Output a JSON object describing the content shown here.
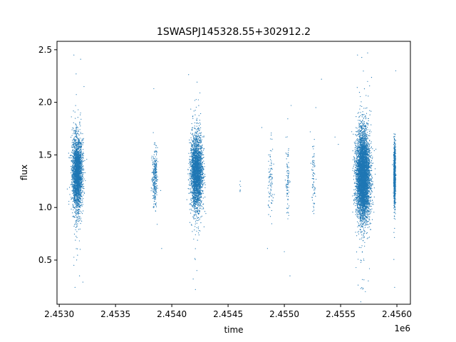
{
  "chart_data": {
    "type": "scatter",
    "title": "1SWASPJ145328.55+302912.2",
    "xlabel": "time",
    "ylabel": "flux",
    "x_offset_label": "1e6",
    "xlim": [
      2.45298,
      2.45612
    ],
    "ylim": [
      0.08,
      2.58
    ],
    "x_ticks": [
      2.453,
      2.4535,
      2.454,
      2.4545,
      2.455,
      2.4555,
      2.456
    ],
    "x_tick_labels": [
      "2.4530",
      "2.4535",
      "2.4540",
      "2.4545",
      "2.4550",
      "2.4555",
      "2.4560"
    ],
    "y_ticks": [
      0.5,
      1.0,
      1.5,
      2.0,
      2.5
    ],
    "y_tick_labels": [
      "0.5",
      "1.0",
      "1.5",
      "2.0",
      "2.5"
    ],
    "grid": false,
    "marker_color": "#1f77b4",
    "marker_size": 0.6,
    "series": [
      {
        "clusters": [
          {
            "x_center": 2.45316,
            "x_spread": 2.2e-05,
            "y_center": 1.32,
            "y_spread": 0.17,
            "count": 2600
          },
          {
            "x_center": 2.45385,
            "x_spread": 1.2e-05,
            "y_center": 1.28,
            "y_spread": 0.13,
            "count": 280
          },
          {
            "x_center": 2.45422,
            "x_spread": 2.6e-05,
            "y_center": 1.33,
            "y_spread": 0.17,
            "count": 2700
          },
          {
            "x_center": 2.45461,
            "x_spread": 3e-06,
            "y_center": 1.2,
            "y_spread": 0.03,
            "count": 6
          },
          {
            "x_center": 2.45488,
            "x_spread": 1.2e-05,
            "y_center": 1.27,
            "y_spread": 0.16,
            "count": 90
          },
          {
            "x_center": 2.45503,
            "x_spread": 8e-06,
            "y_center": 1.25,
            "y_spread": 0.17,
            "count": 90
          },
          {
            "x_center": 2.45526,
            "x_spread": 8e-06,
            "y_center": 1.28,
            "y_spread": 0.16,
            "count": 70
          },
          {
            "x_center": 2.4557,
            "x_spread": 3e-05,
            "y_center": 1.3,
            "y_spread": 0.2,
            "count": 5200
          },
          {
            "x_center": 2.45598,
            "x_spread": 4e-06,
            "y_center": 1.3,
            "y_spread": 0.14,
            "count": 900
          }
        ],
        "outliers": [
          [
            2.45313,
            2.45
          ],
          [
            2.45319,
            2.41
          ],
          [
            2.45315,
            2.27
          ],
          [
            2.45322,
            2.15
          ],
          [
            2.45314,
            0.24
          ],
          [
            2.45321,
            0.29
          ],
          [
            2.45318,
            0.35
          ],
          [
            2.45313,
            0.45
          ],
          [
            2.45384,
            2.13
          ],
          [
            2.45387,
            0.84
          ],
          [
            2.45391,
            0.61
          ],
          [
            2.45425,
            2.09
          ],
          [
            2.45421,
            0.22
          ],
          [
            2.45419,
            0.32
          ],
          [
            2.45533,
            2.22
          ],
          [
            2.4548,
            1.76
          ],
          [
            2.45506,
            1.97
          ],
          [
            2.45505,
            0.35
          ],
          [
            2.45523,
            1.72
          ],
          [
            2.45565,
            2.45
          ],
          [
            2.45574,
            2.47
          ],
          [
            2.45572,
            0.2
          ],
          [
            2.45568,
            0.23
          ],
          [
            2.45599,
            2.3
          ],
          [
            2.45598,
            0.24
          ],
          [
            2.45545,
            1.67
          ],
          [
            2.45548,
            1.6
          ],
          [
            2.45528,
            1.95
          ],
          [
            2.45485,
            0.61
          ],
          [
            2.455,
            0.58
          ]
        ]
      }
    ]
  }
}
